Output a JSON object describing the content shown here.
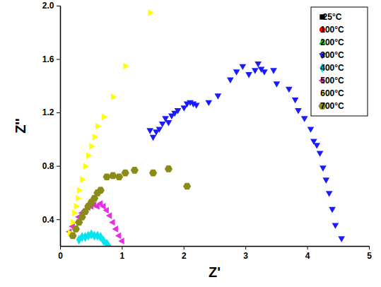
{
  "chart_data": {
    "type": "scatter",
    "x_label": "Z'",
    "y_label": "Z''",
    "xlim": [
      0,
      5
    ],
    "xticks": [
      0,
      1,
      2,
      3,
      4,
      5
    ],
    "ylim": [
      0.2,
      2.0
    ],
    "yticks": [
      0.4,
      0.8,
      1.2,
      1.6,
      {
        "value": 2.0,
        "label": "2.0"
      }
    ],
    "legend": "top-right",
    "series": [
      {
        "name": "25°C",
        "color": "#000000",
        "marker": "square",
        "x": [],
        "values": []
      },
      {
        "name": "100°C",
        "color": "#ff0000",
        "marker": "circle",
        "x": [],
        "values": []
      },
      {
        "name": "200°C",
        "color": "#00cc00",
        "marker": "triangle-up",
        "x": [],
        "values": []
      },
      {
        "name": "300°C",
        "color": "#1a1aff",
        "marker": "triangle-down",
        "x": [
          1.45,
          1.5,
          1.55,
          1.6,
          1.65,
          1.7,
          1.75,
          1.8,
          1.85,
          1.9,
          2.0,
          2.05,
          2.1,
          2.15,
          2.2,
          2.4,
          2.55,
          2.75,
          2.85,
          2.95,
          3.05,
          3.15,
          3.2,
          3.25,
          3.3,
          3.45,
          3.5,
          3.7,
          3.8,
          3.85,
          3.95,
          4.05,
          4.1,
          4.15,
          4.2,
          4.25,
          4.3,
          4.35,
          4.4,
          4.45,
          4.55
        ],
        "values": [
          1.07,
          1.02,
          1.06,
          1.08,
          1.12,
          1.16,
          1.13,
          1.18,
          1.2,
          1.22,
          1.24,
          1.27,
          1.28,
          1.27,
          1.26,
          1.28,
          1.33,
          1.45,
          1.51,
          1.55,
          1.49,
          1.52,
          1.57,
          1.53,
          1.51,
          1.52,
          1.42,
          1.38,
          1.3,
          1.22,
          1.16,
          1.08,
          0.99,
          0.96,
          0.9,
          0.79,
          0.7,
          0.6,
          0.48,
          0.36,
          0.26
        ]
      },
      {
        "name": "400°C",
        "color": "#00e5ee",
        "marker": "diamond",
        "x": [
          0.3,
          0.35,
          0.4,
          0.45,
          0.5,
          0.55,
          0.6,
          0.65,
          0.7,
          0.75,
          0.78
        ],
        "values": [
          0.25,
          0.27,
          0.27,
          0.28,
          0.29,
          0.28,
          0.28,
          0.27,
          0.24,
          0.22,
          0.2
        ]
      },
      {
        "name": "500°C",
        "color": "#e62ee6",
        "marker": "triangle-left",
        "x": [
          0.15,
          0.2,
          0.3,
          0.35,
          0.4,
          0.45,
          0.5,
          0.55,
          0.6,
          0.65,
          0.7,
          0.75,
          0.8,
          0.85,
          0.9,
          0.95,
          1.0
        ],
        "values": [
          0.31,
          0.35,
          0.42,
          0.45,
          0.47,
          0.49,
          0.5,
          0.51,
          0.5,
          0.52,
          0.5,
          0.47,
          0.43,
          0.38,
          0.33,
          0.28,
          0.24
        ]
      },
      {
        "name": "600°C",
        "color": "#ffff00",
        "marker": "triangle-right",
        "x": [
          0.15,
          0.2,
          0.22,
          0.25,
          0.28,
          0.3,
          0.35,
          0.4,
          0.45,
          0.5,
          0.55,
          0.6,
          0.7,
          0.85,
          1.05,
          1.45
        ],
        "values": [
          0.3,
          0.38,
          0.45,
          0.5,
          0.56,
          0.62,
          0.7,
          0.8,
          0.88,
          0.95,
          1.02,
          1.1,
          1.17,
          1.32,
          1.55,
          1.95
        ]
      },
      {
        "name": "700°C",
        "color": "#8b8b1a",
        "marker": "hexagon",
        "x": [
          0.2,
          0.25,
          0.3,
          0.35,
          0.4,
          0.45,
          0.5,
          0.55,
          0.6,
          0.65,
          0.75,
          0.85,
          0.95,
          1.05,
          1.2,
          1.5,
          1.75,
          2.05
        ],
        "values": [
          0.28,
          0.33,
          0.38,
          0.42,
          0.46,
          0.5,
          0.53,
          0.56,
          0.6,
          0.62,
          0.72,
          0.73,
          0.72,
          0.75,
          0.77,
          0.75,
          0.78,
          0.65
        ]
      }
    ]
  }
}
